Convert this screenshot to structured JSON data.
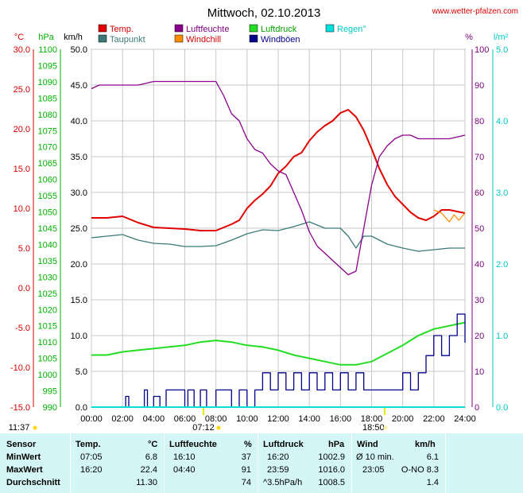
{
  "chart_data": {
    "type": "line",
    "title": "Mittwoch, 02.10.2013",
    "source": "www.wetter-pfalzen.com",
    "x_unit": "hours",
    "x_range": [
      0,
      24
    ],
    "x_ticks": [
      "00:00",
      "02:00",
      "04:00",
      "06:00",
      "08:00",
      "10:00",
      "12:00",
      "14:00",
      "16:00",
      "18:00",
      "20:00",
      "22:00",
      "24:00"
    ],
    "grid": true,
    "legend_position": "top",
    "axes": {
      "temp": {
        "label": "°C",
        "range": [
          -15,
          30
        ],
        "ticks": [
          "30.0",
          "25.0",
          "20.0",
          "15.0",
          "10.0",
          "5.0",
          "0.0",
          "-5.0",
          "-10.0",
          "-15.0"
        ],
        "color": "#d40000"
      },
      "pressure": {
        "label": "hPa",
        "range": [
          990,
          1100
        ],
        "ticks": [
          "1100",
          "1095",
          "1090",
          "1085",
          "1080",
          "1075",
          "1070",
          "1065",
          "1060",
          "1055",
          "1050",
          "1045",
          "1040",
          "1035",
          "1030",
          "1025",
          "1020",
          "1015",
          "1010",
          "1005",
          "1000",
          "995",
          "990"
        ],
        "color": "#00b000"
      },
      "wind": {
        "label": "km/h",
        "range": [
          0,
          50
        ],
        "ticks": [
          "50.0",
          "45.0",
          "40.0",
          "35.0",
          "30.0",
          "25.0",
          "20.0",
          "15.0",
          "10.0",
          "5.0",
          "0.0"
        ],
        "color": "#000000"
      },
      "humidity": {
        "label": "%",
        "range": [
          0,
          100
        ],
        "ticks": [
          "100",
          "90",
          "80",
          "70",
          "60",
          "50",
          "40",
          "30",
          "20",
          "10",
          "0"
        ],
        "color": "#7a007a"
      },
      "rain": {
        "label": "l/m²",
        "range": [
          0,
          5
        ],
        "ticks": [
          "5.0",
          "4.0",
          "3.0",
          "2.0",
          "1.0",
          "0.0"
        ],
        "color": "#00c8c8"
      }
    },
    "legend": [
      {
        "name": "Temp.",
        "color": "#e00000"
      },
      {
        "name": "Luftfeuchte",
        "color": "#8b008b"
      },
      {
        "name": "Luftdruck",
        "color": "#22dd22"
      },
      {
        "name": "Regen°",
        "color": "#00e0e0"
      },
      {
        "name": "Taupunkt",
        "color": "#3a7a78"
      },
      {
        "name": "Windchill",
        "color": "#ff8c00"
      },
      {
        "name": "Windböen",
        "color": "#00008b"
      }
    ],
    "series": [
      {
        "name": "Temp.",
        "axis": "temp",
        "color": "#e00000",
        "x": [
          0,
          1,
          2,
          3,
          4,
          5,
          6,
          7,
          8,
          9,
          9.5,
          10,
          10.5,
          11,
          11.5,
          12,
          12.5,
          13,
          13.5,
          14,
          14.5,
          15,
          15.5,
          16,
          16.5,
          17,
          17.5,
          18,
          18.5,
          19,
          19.5,
          20,
          20.5,
          21,
          21.5,
          22,
          22.5,
          23,
          23.5,
          24
        ],
        "y": [
          8.8,
          8.8,
          9.0,
          8.2,
          7.6,
          7.5,
          7.4,
          7.2,
          7.2,
          8.0,
          8.5,
          10.0,
          11.0,
          11.8,
          12.8,
          14.4,
          15.3,
          16.5,
          17.0,
          18.5,
          19.6,
          20.4,
          21.0,
          22.0,
          22.4,
          21.5,
          19.8,
          17.5,
          15.0,
          13.0,
          11.5,
          10.5,
          9.5,
          8.8,
          8.5,
          9.0,
          9.8,
          9.8,
          9.6,
          9.4
        ]
      },
      {
        "name": "Taupunkt",
        "axis": "temp",
        "color": "#3a7a78",
        "x": [
          0,
          1,
          2,
          3,
          4,
          5,
          6,
          7,
          8,
          9,
          10,
          11,
          12,
          13,
          14,
          15,
          16,
          16.5,
          17,
          17.5,
          18,
          19,
          20,
          21,
          22,
          23,
          24
        ],
        "y": [
          6.3,
          6.5,
          6.7,
          6.0,
          5.6,
          5.5,
          5.2,
          5.2,
          5.3,
          6.0,
          6.8,
          7.3,
          7.2,
          7.7,
          8.3,
          7.5,
          7.5,
          6.5,
          5.0,
          6.5,
          6.5,
          5.5,
          5.0,
          4.6,
          4.8,
          5.0,
          5.0
        ]
      },
      {
        "name": "Windchill",
        "axis": "temp",
        "color": "#ff8c00",
        "x": [
          22,
          22.5,
          23,
          23.3,
          23.6,
          24
        ],
        "y": [
          9.8,
          9.4,
          8.3,
          9.2,
          8.5,
          9.4
        ]
      },
      {
        "name": "Luftfeuchte",
        "axis": "humidity",
        "color": "#8b008b",
        "x": [
          0,
          0.5,
          1,
          2,
          3,
          4,
          5,
          6,
          7,
          8,
          8.5,
          9,
          9.5,
          10,
          10.5,
          11,
          11.5,
          12,
          12.5,
          13,
          13.5,
          14,
          14.5,
          15,
          15.5,
          16,
          16.5,
          17,
          17.5,
          18,
          18.5,
          19,
          19.5,
          20,
          20.5,
          21,
          22,
          23,
          24
        ],
        "y": [
          89,
          90,
          90,
          90,
          90,
          91,
          91,
          91,
          91,
          91,
          87,
          82,
          80,
          75,
          72,
          71,
          68,
          66,
          65,
          60,
          55,
          49,
          45,
          43,
          41,
          39,
          37,
          38,
          50,
          62,
          70,
          73,
          75,
          76,
          76,
          75,
          75,
          75,
          76
        ]
      },
      {
        "name": "Luftdruck",
        "axis": "pressure",
        "color": "#22dd22",
        "x": [
          0,
          1,
          2,
          3,
          4,
          5,
          6,
          7,
          8,
          9,
          10,
          11,
          12,
          13,
          14,
          15,
          16,
          17,
          18,
          19,
          20,
          21,
          22,
          23,
          24
        ],
        "y": [
          1006,
          1006,
          1007,
          1007.5,
          1008,
          1008.5,
          1009,
          1010,
          1010.5,
          1010,
          1009,
          1008.5,
          1007.5,
          1006,
          1005,
          1004,
          1003,
          1003,
          1004,
          1006.5,
          1009,
          1012,
          1014,
          1015,
          1016
        ]
      },
      {
        "name": "Windböen",
        "axis": "wind",
        "color": "#00008b",
        "x": [
          0,
          2,
          2.2,
          2.4,
          3.4,
          3.6,
          4,
          4.4,
          4.8,
          6,
          6.2,
          6.6,
          7,
          7.4,
          8,
          9,
          9.5,
          10,
          10.5,
          11,
          11.5,
          12,
          12.5,
          13,
          13.5,
          14,
          14.5,
          15,
          15.5,
          16,
          16.5,
          17,
          17.5,
          18,
          18.5,
          19,
          19.5,
          20,
          20.5,
          21,
          21.5,
          22,
          22.5,
          23,
          23.5,
          24
        ],
        "y": [
          0,
          0,
          1.5,
          0,
          2.4,
          0,
          1.5,
          0,
          2.4,
          0,
          2.4,
          0,
          2.4,
          0,
          2.4,
          0,
          2.4,
          0,
          2.4,
          4.8,
          2.4,
          4.8,
          2.4,
          4.8,
          2.4,
          4.8,
          2.4,
          4.8,
          2.4,
          4.8,
          2.4,
          4.8,
          2.4,
          2.4,
          2.4,
          2.4,
          2.4,
          4.8,
          2.4,
          4.8,
          7.2,
          10.0,
          7.2,
          10.0,
          13.0,
          9.0
        ]
      },
      {
        "name": "Regen°",
        "axis": "rain",
        "color": "#00e0e0",
        "x": [
          0,
          24
        ],
        "y": [
          0,
          0
        ]
      }
    ],
    "sun_markers": {
      "sunrise": "07:12",
      "sunset": "18:50",
      "start": "11:37"
    }
  },
  "summary": {
    "headers": {
      "sensor": "Sensor",
      "temp": "Temp.",
      "temp_unit": "°C",
      "hum": "Luftfeuchte",
      "hum_unit": "%",
      "press": "Luftdruck",
      "press_unit": "hPa",
      "wind": "Wind",
      "wind_unit": "km/h"
    },
    "rows": [
      {
        "label": "MinWert",
        "temp_time": "07:05",
        "temp_val": "6.8",
        "hum_time": "16:10",
        "hum_val": "37",
        "press_time": "16:20",
        "press_val": "1002.9",
        "wind_time": "Ø 10 min.",
        "wind_val": "6.1"
      },
      {
        "label": "MaxWert",
        "temp_time": "16:20",
        "temp_val": "22.4",
        "hum_time": "04:40",
        "hum_val": "91",
        "press_time": "23:59",
        "press_val": "1016.0",
        "wind_time": "23:05",
        "wind_val": "O-NO 8.3"
      },
      {
        "label": "Durchschnitt",
        "temp_time": "",
        "temp_val": "11.30",
        "hum_time": "",
        "hum_val": "74",
        "press_time": "^3.5hPa/h",
        "press_val": "1008.5",
        "wind_time": "",
        "wind_val": "1.4"
      }
    ]
  }
}
